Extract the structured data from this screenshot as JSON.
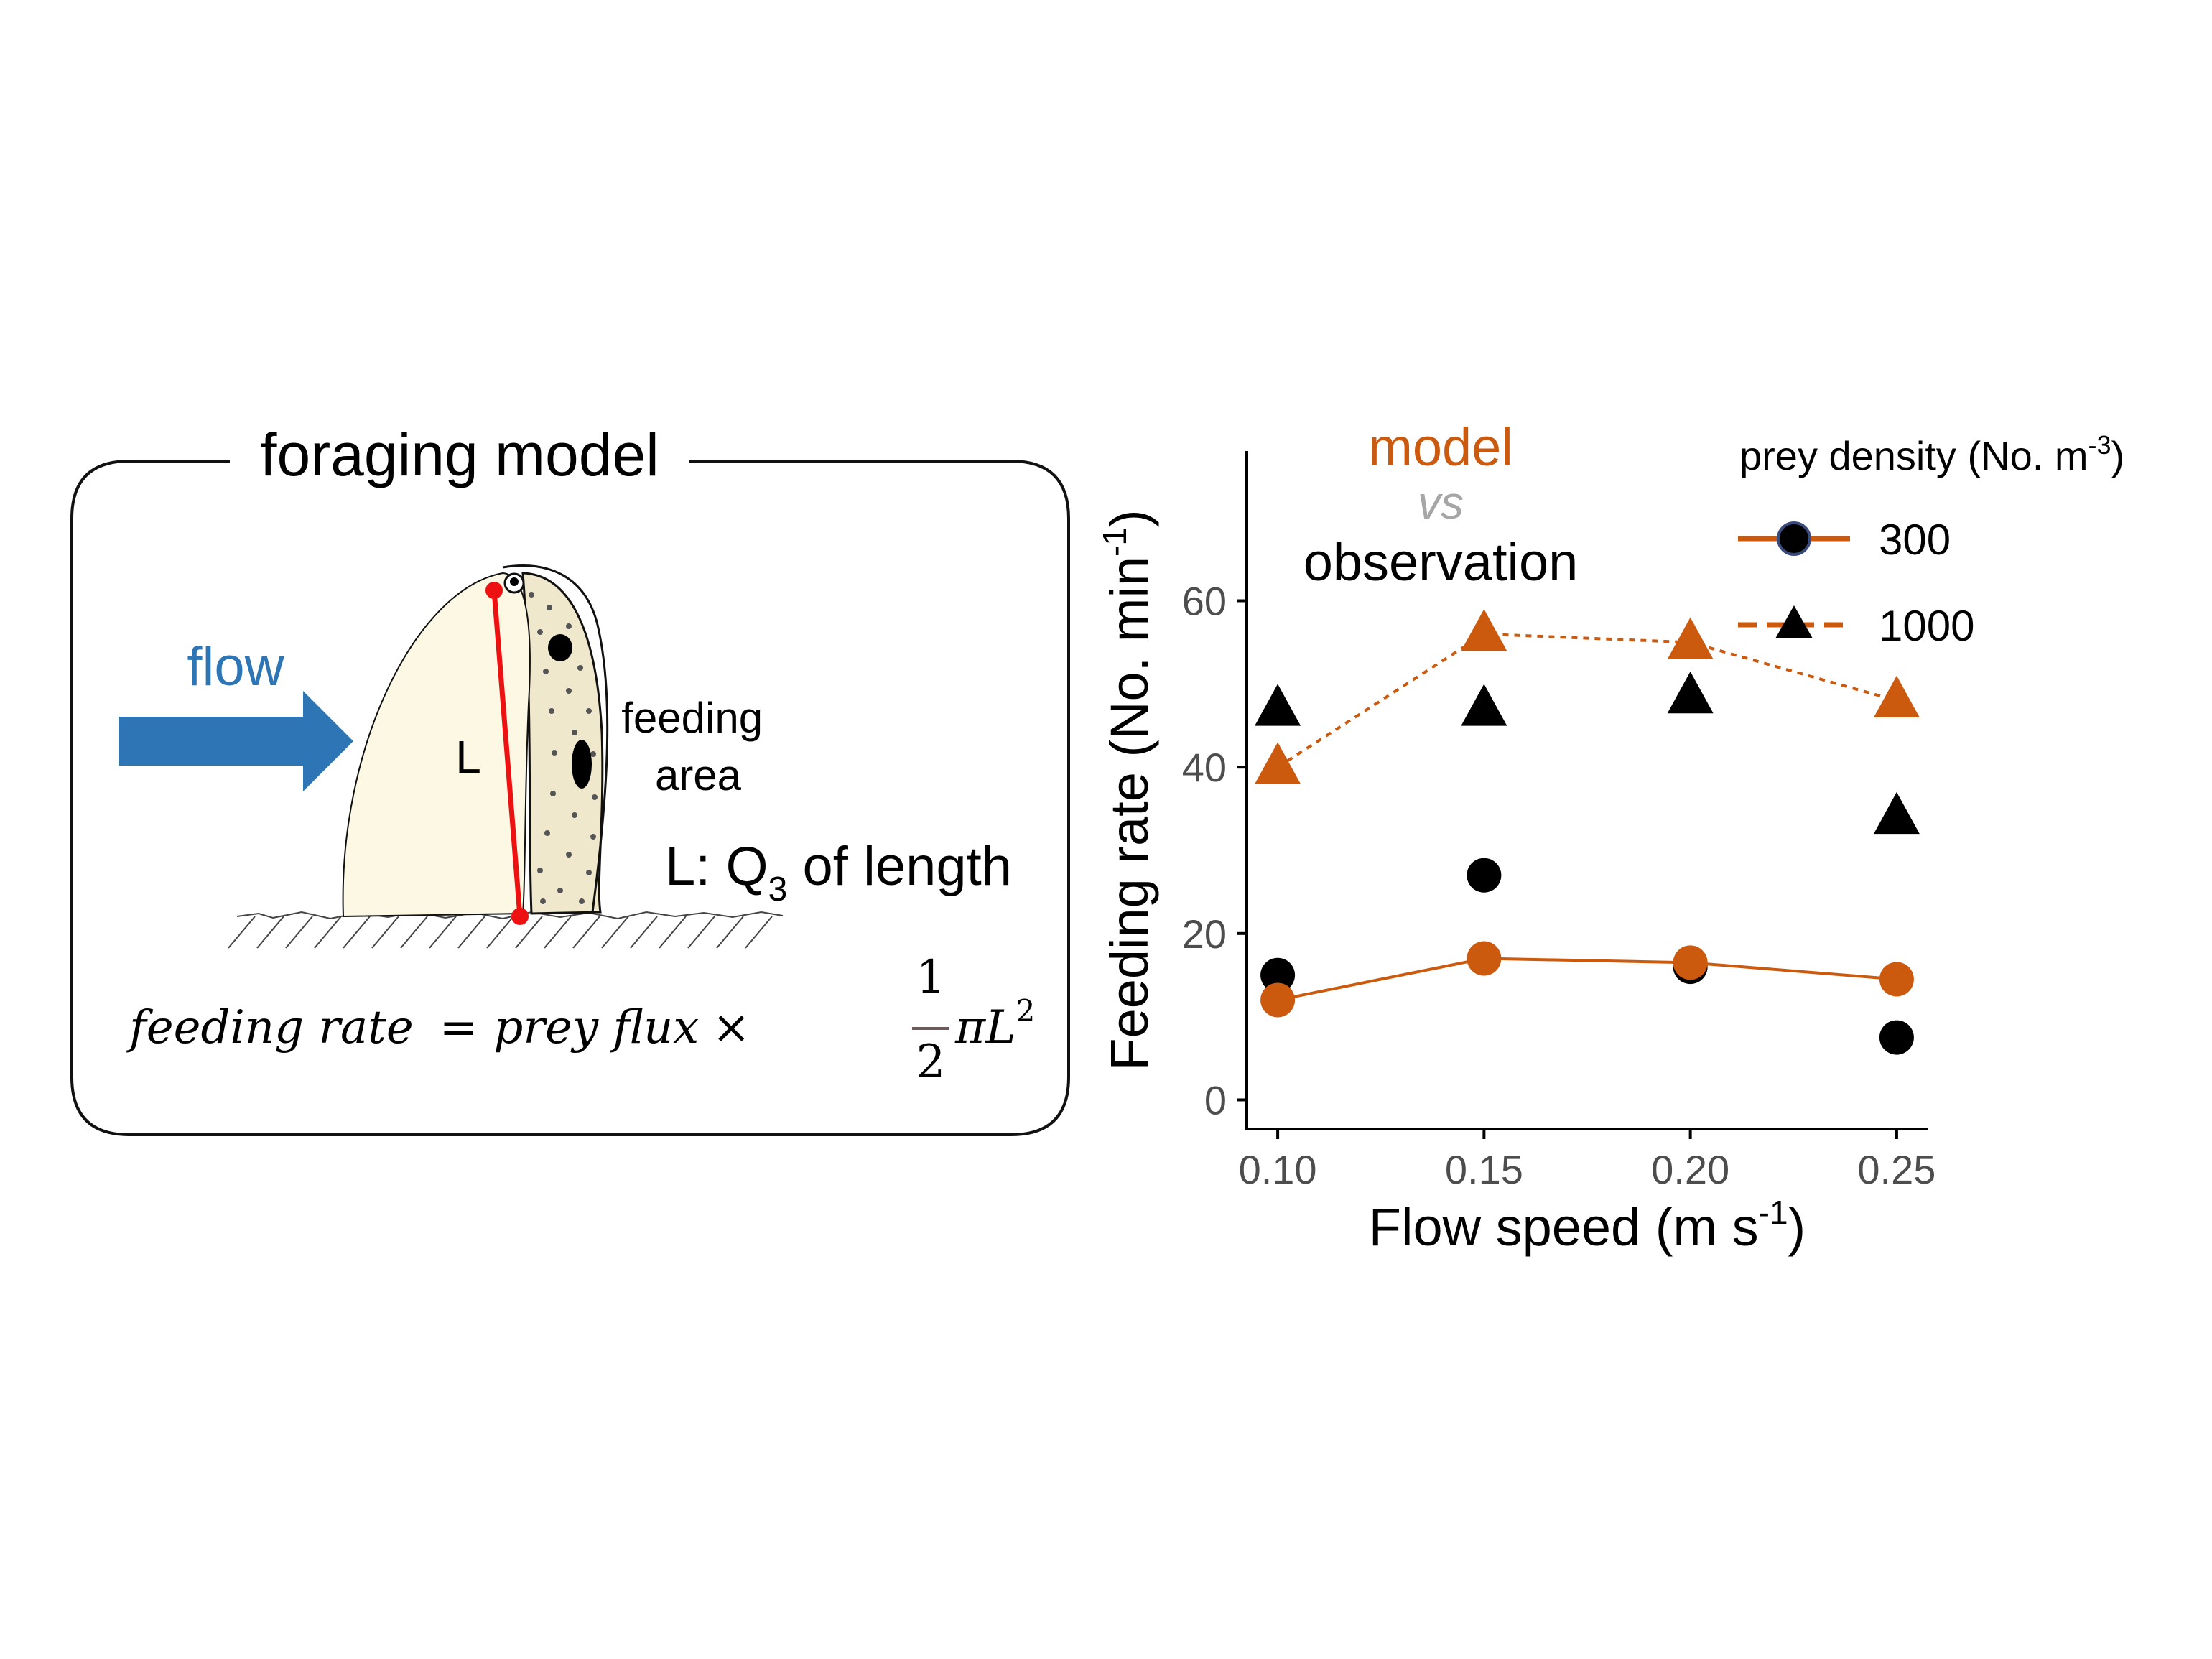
{
  "diagram": {
    "title": "foraging model",
    "flow_label": "flow",
    "length_symbol": "L",
    "feeding_area_line1": "feeding",
    "feeding_area_line2": "area",
    "length_note_prefix": "L: Q",
    "length_note_sub": "3",
    "length_note_suffix": " of length",
    "formula_lhs": "feeding rate",
    "formula_eq": "=",
    "formula_rhs": "prey flux",
    "formula_times": "×",
    "formula_frac_num": "1",
    "formula_frac_den": "2",
    "formula_tail": "πL",
    "formula_tail_sup": "2",
    "colors": {
      "arrow": "#2e75b6",
      "body_fill": "#fdf8e4",
      "length_line": "#ee1111"
    }
  },
  "chart_data": {
    "type": "scatter",
    "title_model": "model",
    "title_vs": "vs",
    "title_observation": "observation",
    "xlabel": "Flow speed (m s",
    "xlabel_sup": "-1",
    "xlabel_tail": ")",
    "ylabel": "Feeding rate (No. min",
    "ylabel_sup": "-1",
    "ylabel_tail": ")",
    "xlim": [
      0.0925,
      0.2575
    ],
    "ylim": [
      -3.5,
      78
    ],
    "x_ticks": [
      0.1,
      0.15,
      0.2,
      0.25
    ],
    "x_tick_labels": [
      "0.10",
      "0.15",
      "0.20",
      "0.25"
    ],
    "y_ticks": [
      0,
      20,
      40,
      60
    ],
    "y_tick_labels": [
      "0",
      "20",
      "40",
      "60"
    ],
    "legend_title": "prey density (No. m",
    "legend_title_sup": "-3",
    "legend_title_tail": ")",
    "legend_items": [
      "300",
      "1000"
    ],
    "series": [
      {
        "name": "model 300",
        "kind": "model",
        "density": "300",
        "marker": "circle",
        "line": "solid",
        "color": "#cc5a0e",
        "x": [
          0.1,
          0.15,
          0.2,
          0.25
        ],
        "y": [
          12,
          17,
          16.5,
          14.5
        ]
      },
      {
        "name": "model 1000",
        "kind": "model",
        "density": "1000",
        "marker": "triangle",
        "line": "dotted",
        "color": "#cc5a0e",
        "x": [
          0.1,
          0.15,
          0.2,
          0.25
        ],
        "y": [
          40,
          56,
          55,
          48
        ]
      },
      {
        "name": "observation 300",
        "kind": "observation",
        "density": "300",
        "marker": "circle",
        "line": "none",
        "color": "#000000",
        "x": [
          0.1,
          0.15,
          0.2,
          0.25
        ],
        "y": [
          15,
          27,
          16,
          7.5
        ]
      },
      {
        "name": "observation 1000",
        "kind": "observation",
        "density": "1000",
        "marker": "triangle",
        "line": "none",
        "color": "#000000",
        "x": [
          0.1,
          0.15,
          0.2,
          0.25
        ],
        "y": [
          47,
          47,
          48.5,
          34
        ]
      }
    ],
    "colors": {
      "model": "#cc5a0e",
      "vs": "#a6a6a6",
      "observation": "#000000",
      "axis": "#000000",
      "tick_label": "#4d4d4d"
    }
  }
}
